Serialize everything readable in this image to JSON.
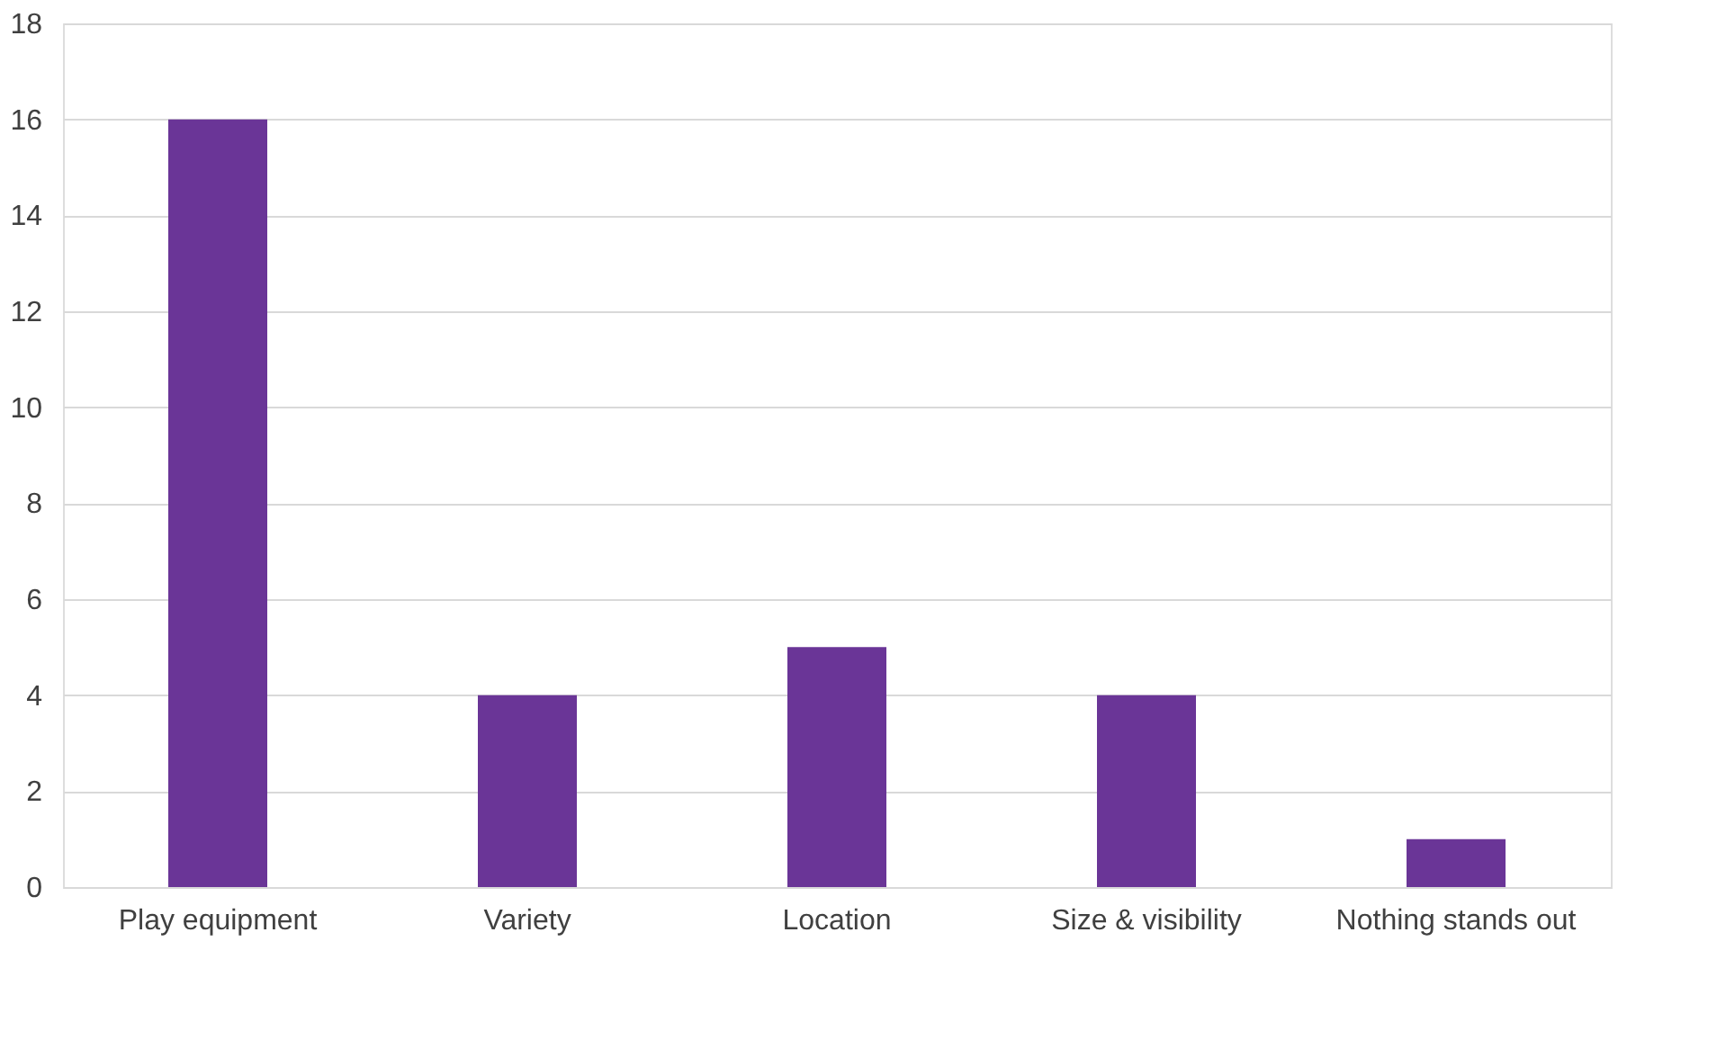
{
  "chart_data": {
    "type": "bar",
    "categories": [
      "Play equipment",
      "Variety",
      "Location",
      "Size & visibility",
      "Nothing stands out"
    ],
    "values": [
      16,
      4,
      5,
      4,
      1
    ],
    "color": "#6a3597",
    "ylim": [
      0,
      18
    ],
    "yticks": [
      0,
      2,
      4,
      6,
      8,
      10,
      12,
      14,
      16,
      18
    ],
    "grid": "y"
  }
}
